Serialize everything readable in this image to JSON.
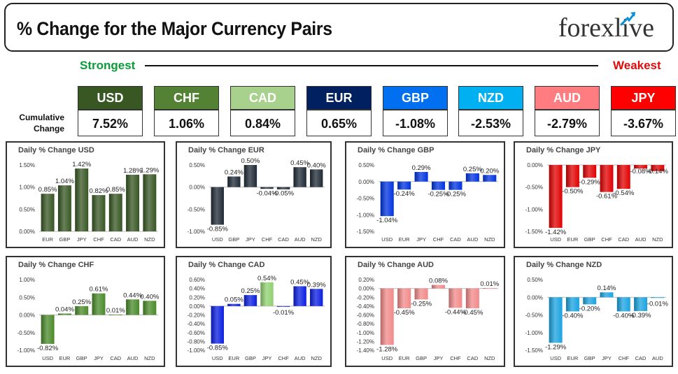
{
  "header": {
    "title": "% Change for the Major Currency Pairs",
    "logo": "forexlive"
  },
  "strength": {
    "strongest": "Strongest",
    "weakest": "Weakest"
  },
  "cumulative_label": [
    "Cumulative",
    "Change"
  ],
  "currencies": [
    {
      "code": "USD",
      "value": "7.52%",
      "color": "#385723"
    },
    {
      "code": "CHF",
      "value": "1.06%",
      "color": "#548235"
    },
    {
      "code": "CAD",
      "value": "0.84%",
      "color": "#a9d18e"
    },
    {
      "code": "EUR",
      "value": "0.65%",
      "color": "#002060"
    },
    {
      "code": "GBP",
      "value": "-1.08%",
      "color": "#0070f0"
    },
    {
      "code": "NZD",
      "value": "-2.53%",
      "color": "#00b0f0"
    },
    {
      "code": "AUD",
      "value": "-2.79%",
      "color": "#ff7c80"
    },
    {
      "code": "JPY",
      "value": "-3.67%",
      "color": "#ff0000"
    }
  ],
  "chart_data": [
    {
      "type": "bar",
      "title": "Daily % Change USD",
      "color": "#375623",
      "categories": [
        "EUR",
        "GBP",
        "JPY",
        "CHF",
        "CAD",
        "AUD",
        "NZD"
      ],
      "values": [
        0.85,
        1.04,
        1.42,
        0.82,
        0.85,
        1.28,
        1.29
      ],
      "labels": [
        "0.85%",
        "1.04%",
        "1.42%",
        "0.82%",
        "0.85%",
        "1.28%",
        "1.29%"
      ],
      "ylim": [
        0,
        1.5
      ],
      "ticks": [
        0,
        0.5,
        1.0,
        1.5
      ],
      "tick_labels": [
        "0.00%",
        "0.50%",
        "1.00%",
        "1.50%"
      ]
    },
    {
      "type": "bar",
      "title": "Daily % Change EUR",
      "color": "#1f2a36",
      "categories": [
        "USD",
        "GBP",
        "JPY",
        "CHF",
        "CAD",
        "AUD",
        "NZD"
      ],
      "values": [
        -0.85,
        0.24,
        0.5,
        -0.04,
        -0.05,
        0.45,
        0.4
      ],
      "labels": [
        "-0.85%",
        "0.24%",
        "0.50%",
        "-0.04%",
        "-0.05%",
        "0.45%",
        "0.40%"
      ],
      "ylim": [
        -1.0,
        0.5
      ],
      "ticks": [
        -1.0,
        -0.5,
        0,
        0.5
      ],
      "tick_labels": [
        "-1.00%",
        "-0.50%",
        "0.00%",
        "0.50%"
      ]
    },
    {
      "type": "bar",
      "title": "Daily % Change GBP",
      "color": "#0033e0",
      "categories": [
        "USD",
        "EUR",
        "JPY",
        "CHF",
        "CAD",
        "AUD",
        "NZD"
      ],
      "values": [
        -1.04,
        -0.24,
        0.29,
        -0.25,
        -0.25,
        0.25,
        0.2
      ],
      "labels": [
        "-1.04%",
        "-0.24%",
        "0.29%",
        "-0.25%",
        "-0.25%",
        "0.25%",
        "0.20%"
      ],
      "ylim": [
        -1.5,
        0.5
      ],
      "ticks": [
        -1.5,
        -1.0,
        -0.5,
        0,
        0.5
      ],
      "tick_labels": [
        "-1.50%",
        "-1.00%",
        "-0.50%",
        "0.00%",
        "0.50%"
      ]
    },
    {
      "type": "bar",
      "title": "Daily % Change JPY",
      "color": "#e00000",
      "categories": [
        "USD",
        "EUR",
        "GBP",
        "CHF",
        "CAD",
        "AUD",
        "NZD"
      ],
      "values": [
        -1.42,
        -0.5,
        -0.29,
        -0.61,
        -0.54,
        -0.08,
        -0.14
      ],
      "labels": [
        "-1.42%",
        "-0.50%",
        "-0.29%",
        "-0.61%",
        "-0.54%",
        "-0.08%",
        "-0.14%"
      ],
      "ylim": [
        -1.5,
        0
      ],
      "ticks": [
        -1.5,
        -1.0,
        -0.5,
        0
      ],
      "tick_labels": [
        "-1.50%",
        "-1.00%",
        "-0.50%",
        "0.00%"
      ]
    },
    {
      "type": "bar",
      "title": "Daily % Change CHF",
      "color": "#4a8a2a",
      "categories": [
        "USD",
        "EUR",
        "GBP",
        "JPY",
        "CAD",
        "AUD",
        "NZD"
      ],
      "values": [
        -0.82,
        0.04,
        0.25,
        0.61,
        0.01,
        0.44,
        0.4
      ],
      "labels": [
        "-0.82%",
        "0.04%",
        "0.25%",
        "0.61%",
        "0.01%",
        "0.44%",
        "0.40%"
      ],
      "ylim": [
        -1.0,
        1.0
      ],
      "ticks": [
        -1.0,
        -0.5,
        0,
        0.5,
        1.0
      ],
      "tick_labels": [
        "-1.00%",
        "-0.50%",
        "0.00%",
        "0.50%",
        "1.00%"
      ]
    },
    {
      "type": "bar",
      "title": "Daily % Change CAD",
      "color": "#0a1ee0",
      "special_colors": {
        "JPY": "#90d070"
      },
      "categories": [
        "USD",
        "EUR",
        "GBP",
        "JPY",
        "CHF",
        "AUD",
        "NZD"
      ],
      "values": [
        -0.85,
        0.05,
        0.25,
        0.54,
        -0.01,
        0.45,
        0.39
      ],
      "labels": [
        "-0.85%",
        "0.05%",
        "0.25%",
        "0.54%",
        "-0.01%",
        "0.45%",
        "0.39%"
      ],
      "ylim": [
        -1.0,
        0.6
      ],
      "ticks": [
        -1.0,
        -0.8,
        -0.6,
        -0.4,
        -0.2,
        0,
        0.2,
        0.4,
        0.6
      ],
      "tick_labels": [
        "-1.00%",
        "-0.80%",
        "-0.60%",
        "-0.40%",
        "-0.20%",
        "0.00%",
        "0.20%",
        "0.40%",
        "0.60%"
      ]
    },
    {
      "type": "bar",
      "title": "Daily % Change AUD",
      "color": "#f28a8a",
      "categories": [
        "USD",
        "EUR",
        "GBP",
        "JPY",
        "CHF",
        "CAD",
        "NZD"
      ],
      "values": [
        -1.28,
        -0.45,
        -0.25,
        0.08,
        -0.44,
        -0.45,
        0.01
      ],
      "labels": [
        "-1.28%",
        "-0.45%",
        "-0.25%",
        "0.08%",
        "-0.44%",
        "-0.45%",
        "0.01%"
      ],
      "ylim": [
        -1.4,
        0.2
      ],
      "ticks": [
        -1.4,
        -1.2,
        -1.0,
        -0.8,
        -0.6,
        -0.4,
        -0.2,
        0,
        0.2
      ],
      "tick_labels": [
        "-1.40%",
        "-1.20%",
        "-1.00%",
        "-0.80%",
        "-0.60%",
        "-0.40%",
        "-0.20%",
        "0.00%",
        "0.20%"
      ]
    },
    {
      "type": "bar",
      "title": "Daily % Change NZD",
      "color": "#1aa3e0",
      "categories": [
        "USD",
        "EUR",
        "GBP",
        "JPY",
        "CHF",
        "CAD",
        "AUD"
      ],
      "values": [
        -1.29,
        -0.4,
        -0.2,
        0.14,
        -0.4,
        -0.39,
        -0.01
      ],
      "labels": [
        "-1.29%",
        "-0.40%",
        "-0.20%",
        "0.14%",
        "-0.40%",
        "-0.39%",
        "-0.01%"
      ],
      "ylim": [
        -1.5,
        0.5
      ],
      "ticks": [
        -1.5,
        -1.0,
        -0.5,
        0,
        0.5
      ],
      "tick_labels": [
        "-1.50%",
        "-1.00%",
        "-0.50%",
        "0.00%",
        "0.50%"
      ]
    }
  ]
}
